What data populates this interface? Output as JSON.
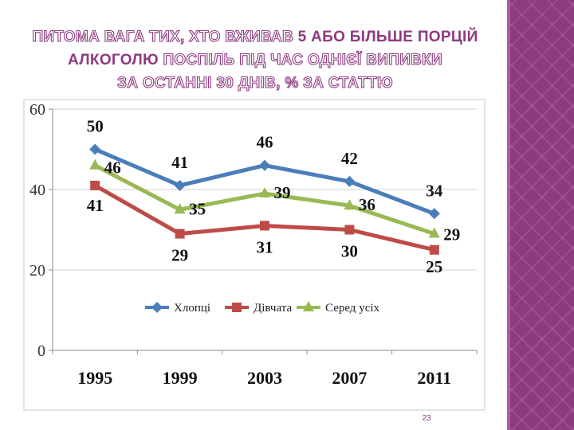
{
  "title": {
    "line1_outline": "ПИТОМА ВАГА ТИХ, ХТО ВЖИВАВ",
    "line1_solid": "5 АБО БІЛЬШЕ ПОРЦІЙ",
    "line2_solid": "АЛКОГОЛЮ",
    "line2_outline": "ПОСПІЛЬ ПІД ЧАС ОДНІЄЇ ВИПИВКИ",
    "line3_outline": "ЗА ОСТАННІ 30 ДНІВ, % ЗА СТАТТЮ"
  },
  "colors": {
    "accent": "#8e3a80",
    "boys": "#4a7ebb",
    "girls": "#be4b48",
    "all": "#98b954"
  },
  "chart_data": {
    "type": "line",
    "categories": [
      "1995",
      "1999",
      "2003",
      "2007",
      "2011"
    ],
    "series": [
      {
        "name": "Хлопці",
        "values": [
          50,
          41,
          46,
          42,
          34
        ]
      },
      {
        "name": "Дівчата",
        "values": [
          41,
          29,
          31,
          30,
          25
        ]
      },
      {
        "name": "Серед усіх",
        "values": [
          46,
          35,
          39,
          36,
          29
        ]
      }
    ],
    "ylim": [
      0,
      60
    ],
    "yticks": [
      "0",
      "20",
      "40",
      "60"
    ],
    "grid": true,
    "legend": "center"
  },
  "page_number": "23"
}
